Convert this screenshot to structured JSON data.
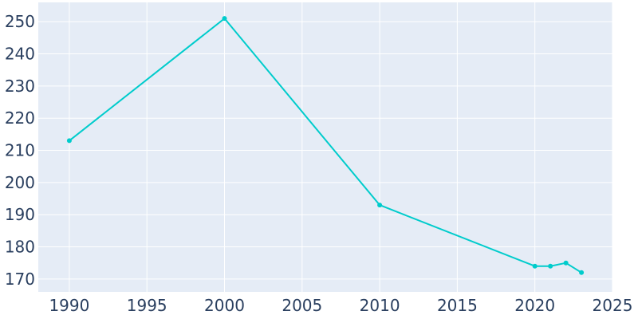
{
  "chart_data": {
    "type": "line",
    "title": "",
    "xlabel": "",
    "ylabel": "",
    "x": [
      1990,
      2000,
      2010,
      2020,
      2021,
      2022,
      2023
    ],
    "series": [
      {
        "values": [
          213,
          251,
          193,
          174,
          174,
          175,
          172
        ]
      }
    ],
    "xlim": [
      1988,
      2025
    ],
    "ylim": [
      166,
      256
    ],
    "xticks": [
      1990,
      1995,
      2000,
      2005,
      2010,
      2015,
      2020,
      2025
    ],
    "yticks": [
      170,
      180,
      190,
      200,
      210,
      220,
      230,
      240,
      250
    ],
    "grid": true,
    "legend": "none",
    "colors": {
      "line": "#00cccc",
      "plot_background": "#e5ecf6",
      "gridline": "#ffffff",
      "tick_text": "#2a3f5f"
    }
  }
}
